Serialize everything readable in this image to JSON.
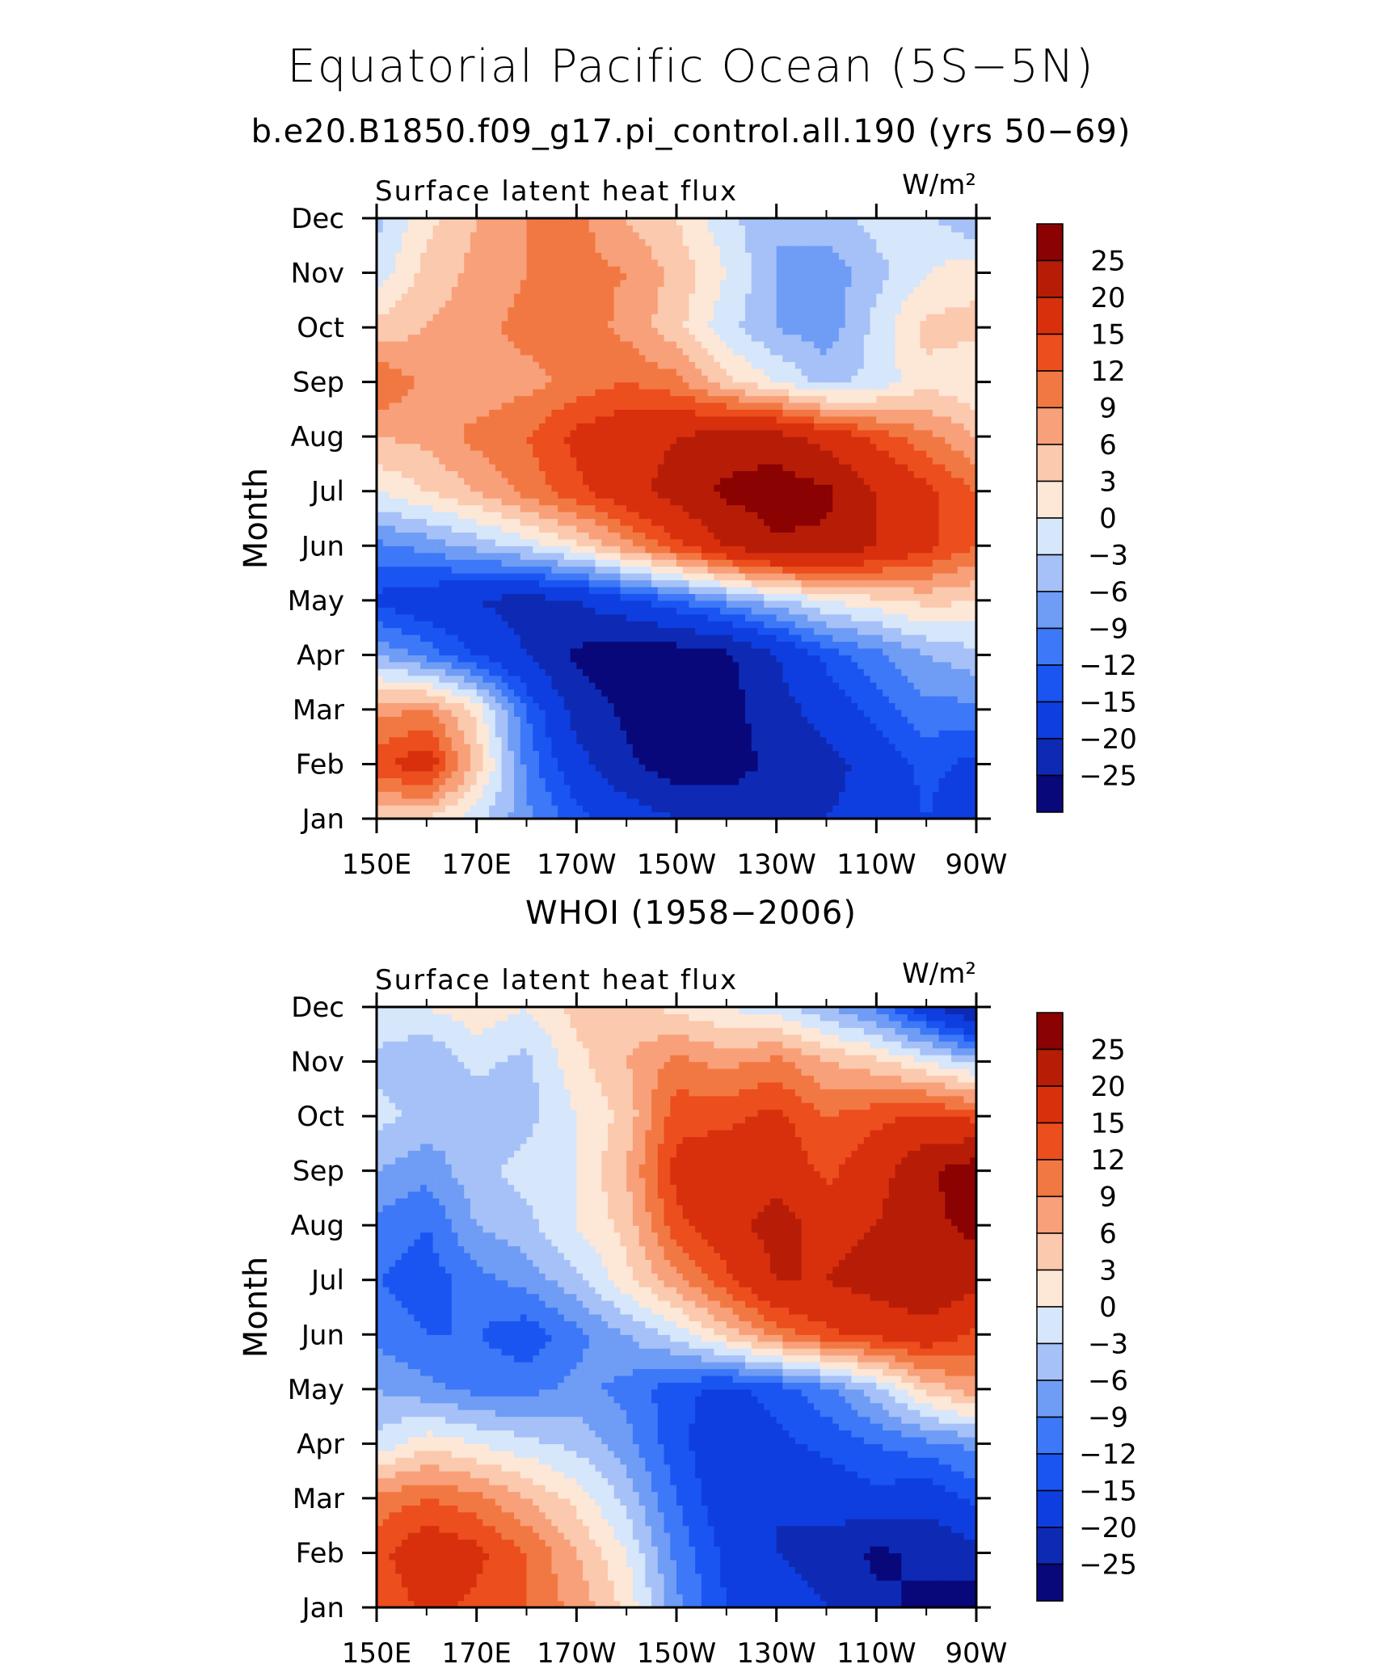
{
  "figure": {
    "title": "Equatorial Pacific Ocean (5S−5N)",
    "subtitle": "b.e20.B1850.f09_g17.pi_control.all.190 (yrs 50−69)"
  },
  "colorbar": {
    "levels": [
      -25,
      -20,
      -15,
      -12,
      -9,
      -6,
      -3,
      0,
      3,
      6,
      9,
      12,
      15,
      20,
      25
    ],
    "labels": [
      "25",
      "20",
      "15",
      "12",
      "9",
      "6",
      "3",
      "0",
      "−3",
      "−6",
      "−9",
      "−12",
      "−15",
      "−20",
      "−25"
    ],
    "colors": [
      "#08087a",
      "#0e2ab4",
      "#0f3ee0",
      "#1a55f2",
      "#3c78f7",
      "#6f9cf5",
      "#a6c1f7",
      "#d6e6fb",
      "#fde7d7",
      "#fbc9ad",
      "#f8a07a",
      "#f27843",
      "#ec4e1e",
      "#d8300d",
      "#b71d06",
      "#8a0202"
    ]
  },
  "chart_data": [
    {
      "type": "heatmap",
      "panel_title": "",
      "field_label": "Surface latent heat flux",
      "units": "W/m²",
      "ylabel": "Month",
      "xlabel": "",
      "x_ticks": [
        "150E",
        "170E",
        "170W",
        "150W",
        "130W",
        "110W",
        "90W"
      ],
      "x_range": [
        150,
        270
      ],
      "y_ticks": [
        "Jan",
        "Feb",
        "Mar",
        "Apr",
        "May",
        "Jun",
        "Jul",
        "Aug",
        "Sep",
        "Oct",
        "Nov",
        "Dec"
      ],
      "x": [
        150,
        160,
        170,
        180,
        190,
        200,
        210,
        220,
        230,
        240,
        250,
        260,
        270
      ],
      "rows": [
        [
          4,
          3,
          -2,
          -8,
          -14,
          -17,
          -20,
          -22,
          -22,
          -20,
          -17,
          -15,
          -18
        ],
        [
          14,
          18,
          5,
          -10,
          -18,
          -24,
          -28,
          -27,
          -24,
          -22,
          -18,
          -14,
          -16
        ],
        [
          8,
          9,
          2,
          -12,
          -22,
          -26,
          -28,
          -27,
          -22,
          -18,
          -14,
          -10,
          -10
        ],
        [
          -6,
          -10,
          -15,
          -20,
          -26,
          -29,
          -28,
          -26,
          -20,
          -14,
          -10,
          -6,
          -4
        ],
        [
          -16,
          -18,
          -20,
          -22,
          -20,
          -16,
          -12,
          -8,
          -4,
          0,
          2,
          4,
          3
        ],
        [
          -10,
          -8,
          -5,
          -2,
          2,
          8,
          14,
          20,
          24,
          24,
          20,
          16,
          12
        ],
        [
          0,
          3,
          6,
          10,
          14,
          18,
          22,
          26,
          28,
          26,
          20,
          16,
          12
        ],
        [
          6,
          7,
          10,
          12,
          16,
          18,
          20,
          22,
          22,
          18,
          14,
          10,
          6
        ],
        [
          12,
          8,
          7,
          8,
          10,
          12,
          10,
          4,
          0,
          -4,
          -2,
          2,
          0
        ],
        [
          4,
          6,
          8,
          10,
          11,
          8,
          4,
          -2,
          -6,
          -8,
          -2,
          4,
          4
        ],
        [
          -2,
          4,
          7,
          9,
          10,
          9,
          5,
          0,
          -6,
          -8,
          -4,
          0,
          2
        ],
        [
          -4,
          2,
          6,
          9,
          10,
          6,
          3,
          -2,
          -6,
          -4,
          -2,
          -2,
          -6
        ]
      ]
    },
    {
      "type": "heatmap",
      "panel_title": "WHOI (1958−2006)",
      "field_label": "Surface latent heat flux",
      "units": "W/m²",
      "ylabel": "Month",
      "xlabel": "",
      "x_ticks": [
        "150E",
        "170E",
        "170W",
        "150W",
        "130W",
        "110W",
        "90W"
      ],
      "x_range": [
        150,
        270
      ],
      "y_ticks": [
        "Jan",
        "Feb",
        "Mar",
        "Apr",
        "May",
        "Jun",
        "Jul",
        "Aug",
        "Sep",
        "Oct",
        "Nov",
        "Dec"
      ],
      "x": [
        150,
        160,
        170,
        180,
        190,
        200,
        210,
        220,
        230,
        240,
        250,
        260,
        270
      ],
      "rows": [
        [
          12,
          16,
          14,
          12,
          8,
          2,
          -8,
          -15,
          -18,
          -20,
          -24,
          -26,
          -28
        ],
        [
          14,
          18,
          16,
          12,
          6,
          0,
          -10,
          -16,
          -20,
          -22,
          -26,
          -24,
          -22
        ],
        [
          10,
          12,
          10,
          6,
          2,
          -4,
          -12,
          -18,
          -20,
          -18,
          -16,
          -18,
          -14
        ],
        [
          -2,
          2,
          0,
          -2,
          -4,
          -8,
          -14,
          -18,
          -16,
          -14,
          -12,
          -10,
          -8
        ],
        [
          -6,
          -8,
          -10,
          -10,
          -8,
          -10,
          -14,
          -16,
          -14,
          -10,
          -4,
          4,
          8
        ],
        [
          -10,
          -12,
          -12,
          -14,
          -10,
          -6,
          -2,
          4,
          10,
          14,
          16,
          18,
          14
        ],
        [
          -12,
          -14,
          -10,
          -8,
          -4,
          2,
          8,
          14,
          20,
          20,
          22,
          24,
          22
        ],
        [
          -10,
          -12,
          -6,
          -4,
          0,
          4,
          14,
          18,
          22,
          18,
          20,
          24,
          26
        ],
        [
          -6,
          -8,
          -4,
          -2,
          0,
          6,
          16,
          18,
          18,
          14,
          18,
          24,
          28
        ],
        [
          -2,
          -4,
          -6,
          -4,
          0,
          4,
          14,
          14,
          16,
          12,
          14,
          16,
          14
        ],
        [
          -4,
          -6,
          -2,
          -4,
          2,
          6,
          10,
          8,
          10,
          6,
          4,
          0,
          -4
        ],
        [
          0,
          0,
          2,
          0,
          4,
          4,
          2,
          0,
          -2,
          -6,
          -10,
          -18,
          -26
        ]
      ]
    }
  ]
}
